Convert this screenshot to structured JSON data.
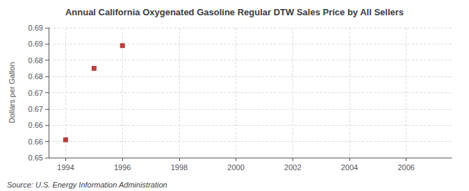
{
  "chart_data": {
    "type": "scatter",
    "title": "Annual California Oxygenated Gasoline Regular DTW Sales Price by All Sellers",
    "ylabel": "Dollars per Gallon",
    "annotations": [
      "Source: U.S. Energy Information Administration"
    ],
    "x": [
      1994,
      1995,
      1996
    ],
    "values": [
      0.6555,
      0.6775,
      0.6845
    ],
    "color": "#aa1111",
    "marker": "square",
    "xlim": [
      1993.4,
      2007.6
    ],
    "xticks": [
      1994,
      1996,
      1998,
      2000,
      2002,
      2004,
      2006
    ],
    "ylim": [
      0.65,
      0.69
    ],
    "yticks": [
      0.65,
      {
        "value": 0.655,
        "label": "0.66"
      },
      {
        "value": 0.66,
        "label": "0.66"
      },
      {
        "value": 0.665,
        "label": "0.67"
      },
      0.67,
      {
        "value": 0.675,
        "label": "0.68"
      },
      0.68,
      {
        "value": 0.685,
        "label": "0.69"
      },
      0.69
    ],
    "grid": true
  }
}
